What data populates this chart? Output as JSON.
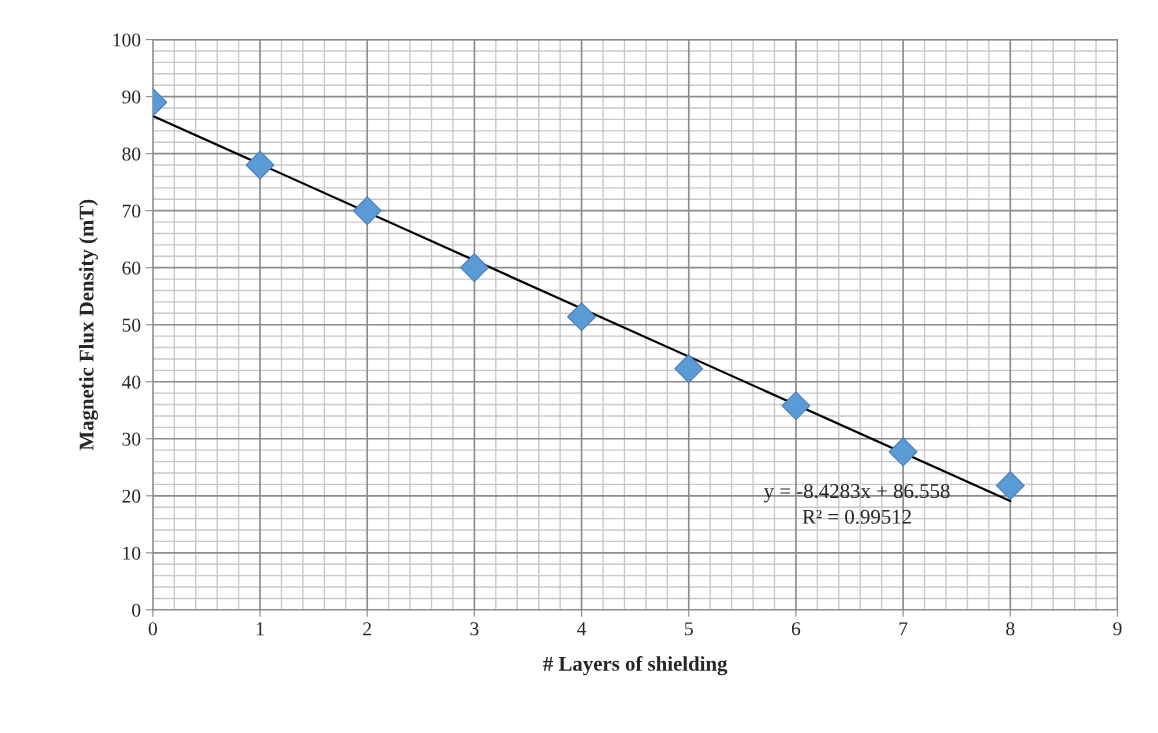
{
  "chart_data": {
    "type": "scatter",
    "xlabel": "# Layers of shielding",
    "ylabel": "Magnetic Flux Density (mT)",
    "x": [
      0,
      1,
      2,
      3,
      4,
      5,
      6,
      7,
      8
    ],
    "series": [
      {
        "color": "#5b9bd5",
        "marker": "diamond",
        "values": [
          89,
          78,
          70,
          60,
          51.4,
          42.3,
          35.8,
          27.7,
          21.8
        ]
      },
      {
        "type": "line",
        "color": "#000000",
        "x": [
          0,
          8
        ],
        "values": [
          86.6,
          19.1
        ],
        "line_style": "solid"
      }
    ],
    "xlim": [
      0,
      9
    ],
    "xticks": [
      0,
      1,
      2,
      3,
      4,
      5,
      6,
      7,
      8,
      9
    ],
    "ylim": [
      0,
      100
    ],
    "yticks": [
      0,
      10,
      20,
      30,
      40,
      50,
      60,
      70,
      80,
      90,
      100
    ],
    "grid": true,
    "legend": false,
    "annotations": [
      "y = -8.4283x + 86.558",
      "R² = 0.99512"
    ]
  }
}
